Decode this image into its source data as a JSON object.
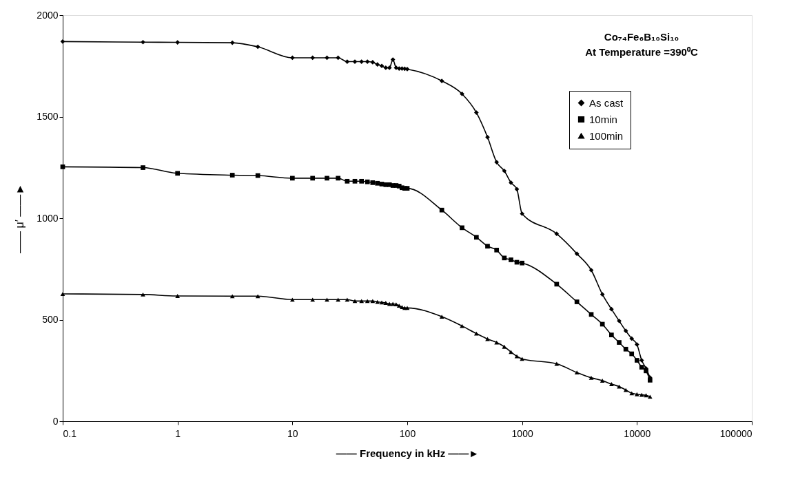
{
  "chart_data": {
    "type": "line",
    "annotations": [
      "Co₇₄Fe₆B₁₀Si₁₀",
      "At Temperature =390⁰C"
    ],
    "xlabel": "—— Frequency in kHz ——►",
    "ylabel": "—— μ′ ——►",
    "x": [
      0.1,
      0.5,
      1,
      3,
      5,
      10,
      15,
      20,
      25,
      30,
      35,
      40,
      45,
      50,
      55,
      60,
      65,
      70,
      75,
      80,
      85,
      90,
      95,
      100,
      200,
      300,
      400,
      500,
      600,
      700,
      800,
      900,
      1000,
      2000,
      3000,
      4000,
      5000,
      6000,
      7000,
      8000,
      9000,
      10000,
      11000,
      12000,
      13000
    ],
    "series": [
      {
        "name": "As cast",
        "color": "#000000",
        "marker": "diamond",
        "values": [
          1870,
          1867,
          1866,
          1864,
          1844,
          1790,
          1790,
          1790,
          1790,
          1771,
          1771,
          1771,
          1771,
          1768,
          1757,
          1750,
          1741,
          1741,
          1781,
          1741,
          1737,
          1737,
          1736,
          1734,
          1676,
          1612,
          1520,
          1399,
          1276,
          1233,
          1175,
          1143,
          1022,
          923,
          825,
          744,
          625,
          552,
          494,
          445,
          407,
          378,
          300,
          260,
          215
        ]
      },
      {
        "name": "10min",
        "color": "#000000",
        "marker": "square",
        "values": [
          1253,
          1249,
          1221,
          1212,
          1210,
          1197,
          1197,
          1197,
          1197,
          1182,
          1182,
          1182,
          1179,
          1175,
          1172,
          1168,
          1165,
          1165,
          1161,
          1161,
          1158,
          1150,
          1147,
          1147,
          1040,
          953,
          906,
          862,
          843,
          804,
          795,
          783,
          779,
          675,
          588,
          526,
          478,
          425,
          388,
          355,
          332,
          300,
          266,
          248,
          202
        ]
      },
      {
        "name": "100min",
        "color": "#000000",
        "marker": "triangle",
        "values": [
          627,
          624,
          617,
          616,
          616,
          599,
          599,
          599,
          599,
          599,
          592,
          592,
          592,
          592,
          588,
          585,
          583,
          578,
          578,
          576,
          569,
          562,
          558,
          558,
          515,
          469,
          432,
          405,
          388,
          367,
          341,
          320,
          307,
          283,
          240,
          214,
          200,
          183,
          171,
          154,
          138,
          133,
          130,
          128,
          121
        ]
      }
    ],
    "log": "x",
    "xlim": [
      0.1,
      100000
    ],
    "xticks": [
      0.1,
      1,
      10,
      100,
      1000,
      10000,
      100000
    ],
    "ylim": [
      0,
      2000
    ],
    "yticks": [
      0,
      500,
      1000,
      1500,
      2000
    ],
    "grid": false,
    "legend": "top right"
  }
}
